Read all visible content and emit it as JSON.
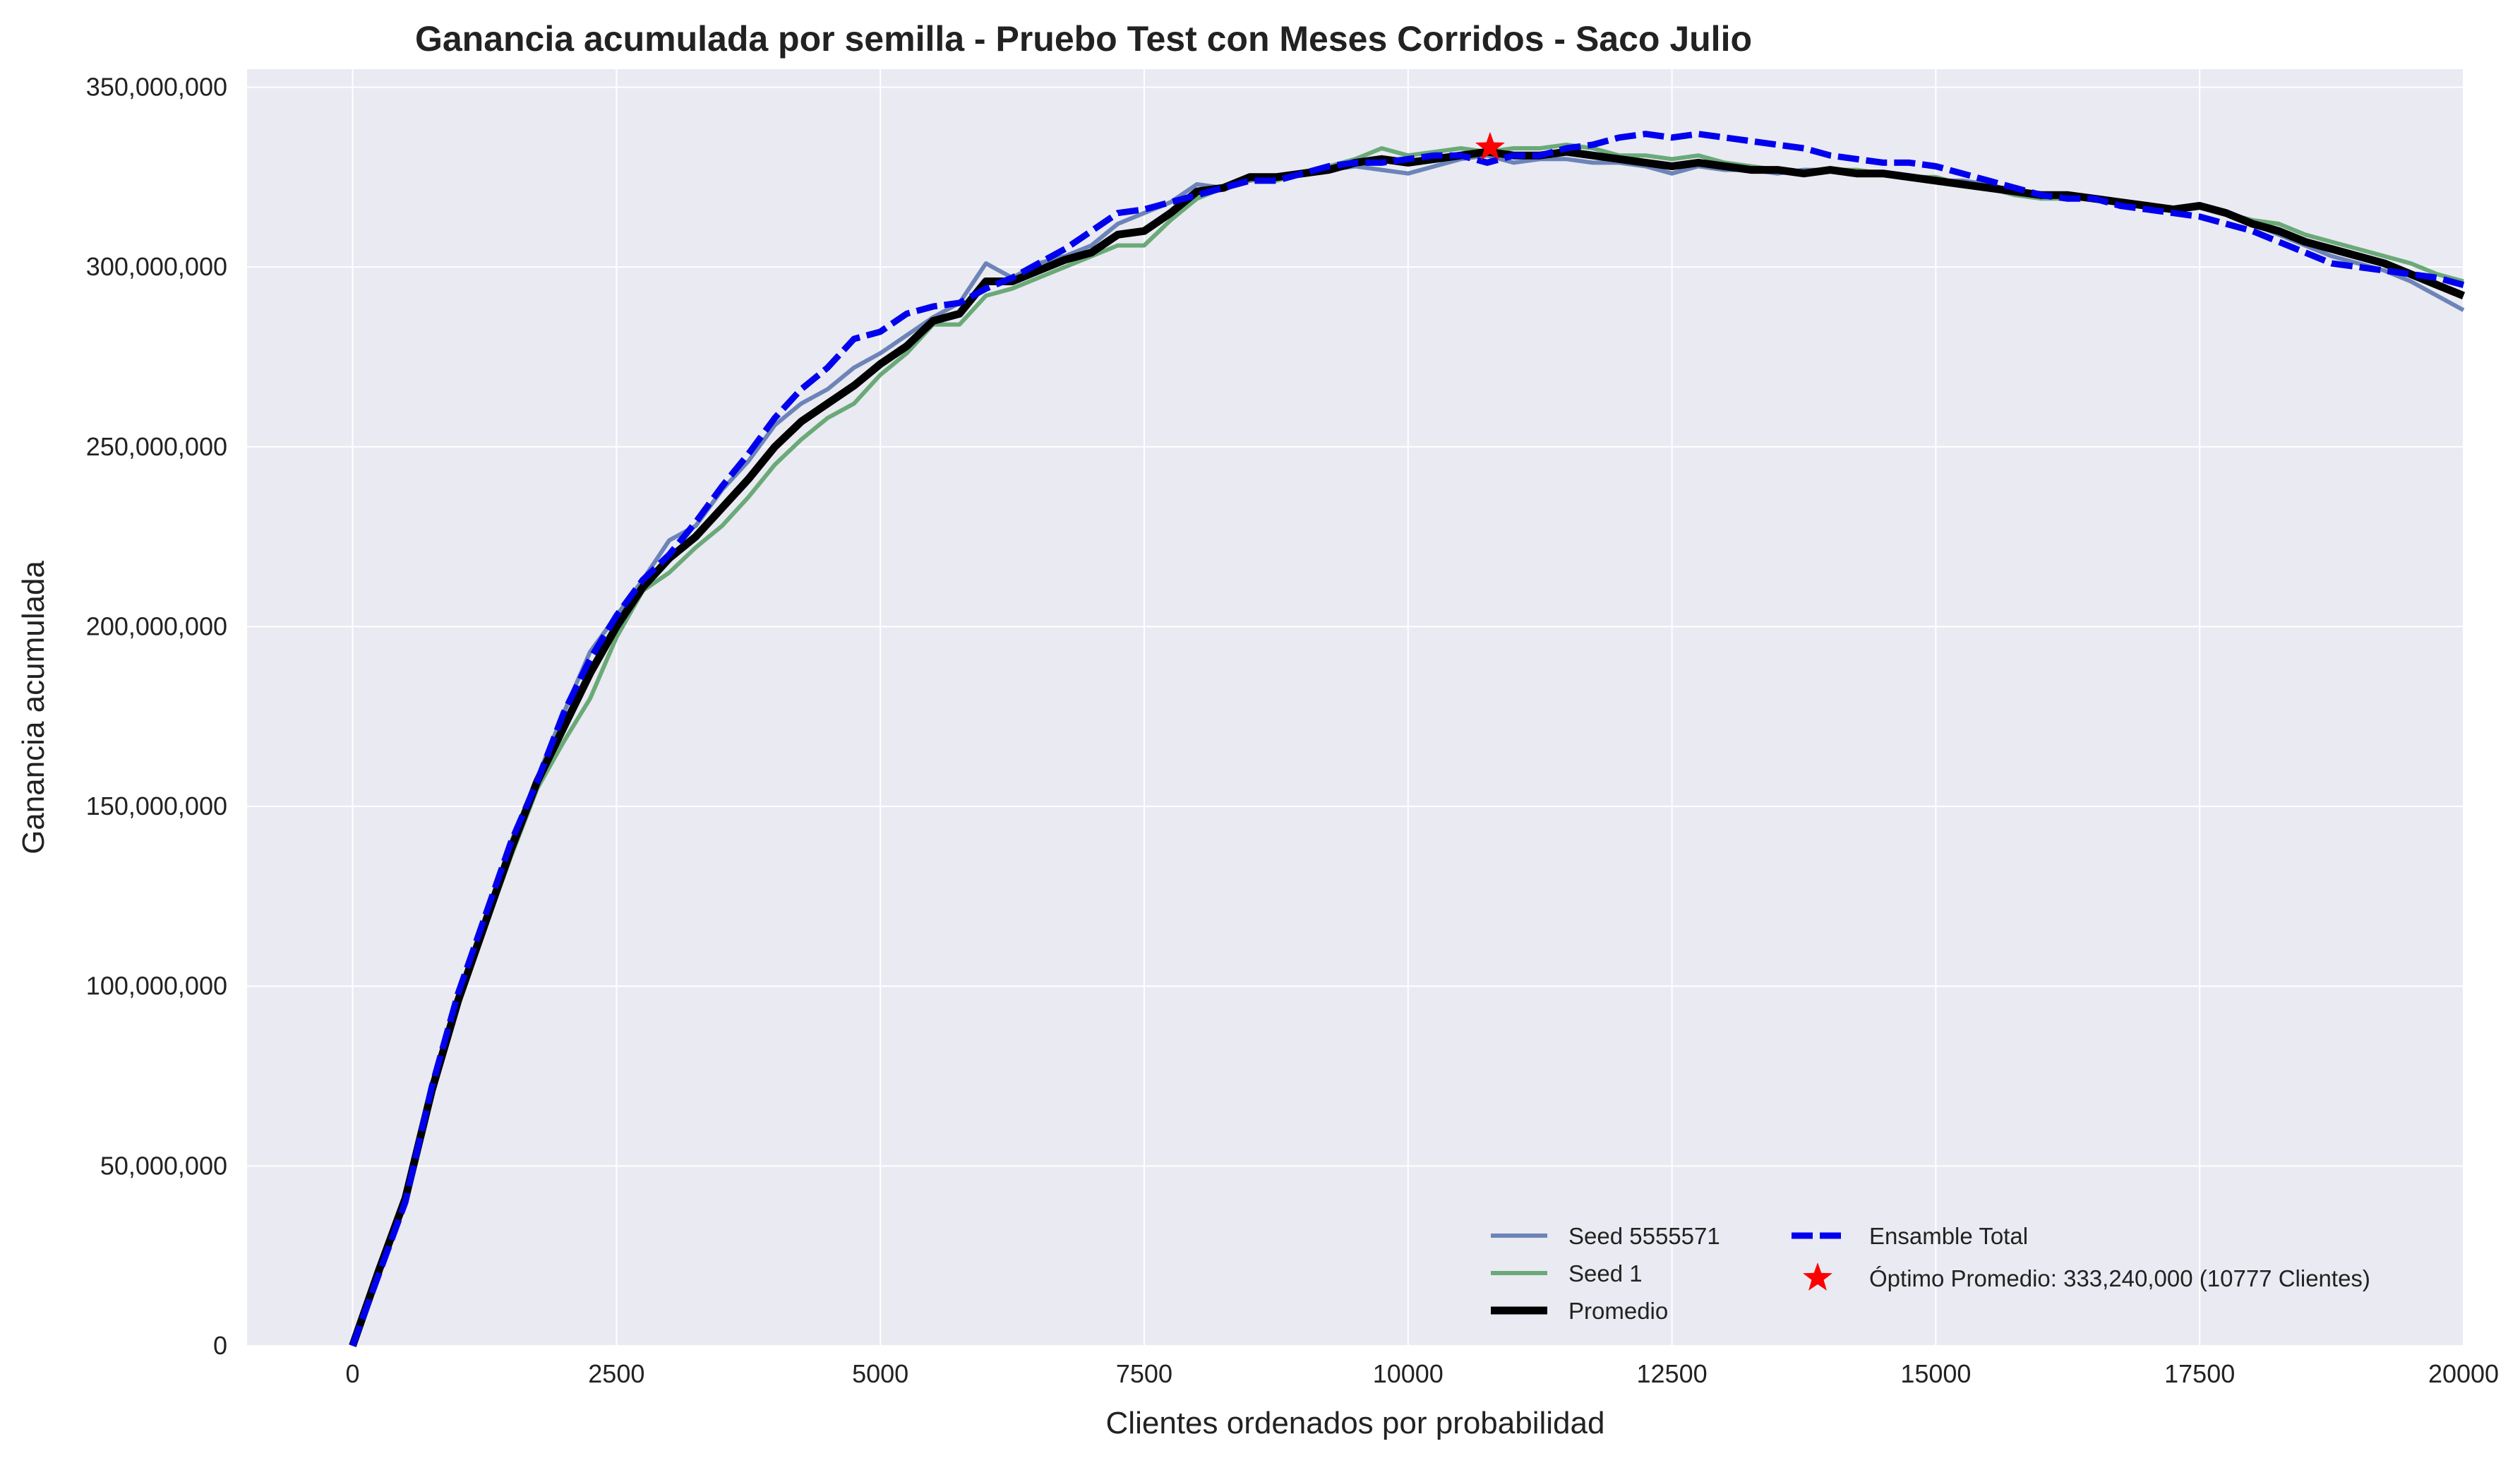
{
  "chart_data": {
    "type": "line",
    "title": "Ganancia acumulada por semilla - Pruebo Test con Meses Corridos - Saco Julio",
    "xlabel": "Clientes ordenados por probabilidad",
    "ylabel": "Ganancia acumulada",
    "xlim": [
      -1000,
      20000
    ],
    "ylim": [
      0,
      355000000
    ],
    "x_ticks": [
      0,
      2500,
      5000,
      7500,
      10000,
      12500,
      15000,
      17500,
      20000
    ],
    "x_tick_labels": [
      "0",
      "2500",
      "5000",
      "7500",
      "10000",
      "12500",
      "15000",
      "17500",
      "20000"
    ],
    "y_ticks": [
      0,
      50000000,
      100000000,
      150000000,
      200000000,
      250000000,
      300000000,
      350000000
    ],
    "y_tick_labels": [
      "0",
      "50,000,000",
      "100,000,000",
      "150,000,000",
      "200,000,000",
      "250,000,000",
      "300,000,000",
      "350,000,000"
    ],
    "grid": true,
    "background": "#eaeaf2",
    "legend_position": "bottom-right",
    "legend_columns": 2,
    "series": [
      {
        "name": "Seed 5555571",
        "color": "#6c84b8",
        "style": "solid",
        "x": [
          0,
          250,
          500,
          750,
          1000,
          1250,
          1500,
          1750,
          2000,
          2250,
          2500,
          2750,
          3000,
          3250,
          3500,
          3750,
          4000,
          4250,
          4500,
          4750,
          5000,
          5250,
          5500,
          5750,
          6000,
          6250,
          6500,
          6750,
          7000,
          7250,
          7500,
          7750,
          8000,
          8250,
          8500,
          8750,
          9000,
          9250,
          9500,
          9750,
          10000,
          10250,
          10500,
          10750,
          11000,
          11250,
          11500,
          11750,
          12000,
          12250,
          12500,
          12750,
          13000,
          13250,
          13500,
          13750,
          14000,
          14250,
          14500,
          14750,
          15000,
          15250,
          15500,
          15750,
          16000,
          16250,
          16500,
          16750,
          17000,
          17250,
          17500,
          17750,
          18000,
          18250,
          18500,
          18750,
          19000,
          19250,
          19500,
          19750,
          20000
        ],
        "values": [
          0,
          22000000,
          42000000,
          72000000,
          96000000,
          118000000,
          140000000,
          158000000,
          176000000,
          193000000,
          203000000,
          213000000,
          224000000,
          228000000,
          238000000,
          246000000,
          256000000,
          262000000,
          266000000,
          272000000,
          276000000,
          281000000,
          286000000,
          290000000,
          301000000,
          297000000,
          301000000,
          303000000,
          306000000,
          312000000,
          315000000,
          318000000,
          323000000,
          322000000,
          324000000,
          325000000,
          326000000,
          327000000,
          328000000,
          327000000,
          326000000,
          328000000,
          330000000,
          331000000,
          329000000,
          330000000,
          330000000,
          329000000,
          329000000,
          328000000,
          326000000,
          328000000,
          327000000,
          327000000,
          326000000,
          327000000,
          327000000,
          326000000,
          326000000,
          325000000,
          324000000,
          324000000,
          323000000,
          321000000,
          320000000,
          320000000,
          319000000,
          318000000,
          317000000,
          316000000,
          317000000,
          315000000,
          312000000,
          309000000,
          306000000,
          303000000,
          301000000,
          299000000,
          296000000,
          292000000,
          288000000
        ]
      },
      {
        "name": "Seed 1",
        "color": "#6aaa78",
        "style": "solid",
        "x": [
          0,
          250,
          500,
          750,
          1000,
          1250,
          1500,
          1750,
          2000,
          2250,
          2500,
          2750,
          3000,
          3250,
          3500,
          3750,
          4000,
          4250,
          4500,
          4750,
          5000,
          5250,
          5500,
          5750,
          6000,
          6250,
          6500,
          6750,
          7000,
          7250,
          7500,
          7750,
          8000,
          8250,
          8500,
          8750,
          9000,
          9250,
          9500,
          9750,
          10000,
          10250,
          10500,
          10750,
          11000,
          11250,
          11500,
          11750,
          12000,
          12250,
          12500,
          12750,
          13000,
          13250,
          13500,
          13750,
          14000,
          14250,
          14500,
          14750,
          15000,
          15250,
          15500,
          15750,
          16000,
          16250,
          16500,
          16750,
          17000,
          17250,
          17500,
          17750,
          18000,
          18250,
          18500,
          18750,
          19000,
          19250,
          19500,
          19750,
          20000
        ],
        "values": [
          0,
          20000000,
          40000000,
          70000000,
          95000000,
          116000000,
          136000000,
          155000000,
          168000000,
          180000000,
          197000000,
          210000000,
          215000000,
          222000000,
          228000000,
          236000000,
          245000000,
          252000000,
          258000000,
          262000000,
          270000000,
          276000000,
          284000000,
          284000000,
          292000000,
          294000000,
          297000000,
          300000000,
          303000000,
          306000000,
          306000000,
          313000000,
          319000000,
          322000000,
          325000000,
          324000000,
          326000000,
          328000000,
          330000000,
          333000000,
          331000000,
          332000000,
          333000000,
          332000000,
          333000000,
          333000000,
          334000000,
          333000000,
          331000000,
          331000000,
          330000000,
          331000000,
          329000000,
          328000000,
          327000000,
          326000000,
          327000000,
          327000000,
          326000000,
          325000000,
          325000000,
          323000000,
          322000000,
          320000000,
          319000000,
          319000000,
          319000000,
          318000000,
          317000000,
          316000000,
          317000000,
          315000000,
          313000000,
          312000000,
          309000000,
          307000000,
          305000000,
          303000000,
          301000000,
          298000000,
          296000000
        ]
      },
      {
        "name": "Promedio",
        "color": "#000000",
        "style": "solid-thick",
        "x": [
          0,
          250,
          500,
          750,
          1000,
          1250,
          1500,
          1750,
          2000,
          2250,
          2500,
          2750,
          3000,
          3250,
          3500,
          3750,
          4000,
          4250,
          4500,
          4750,
          5000,
          5250,
          5500,
          5750,
          6000,
          6250,
          6500,
          6750,
          7000,
          7250,
          7500,
          7750,
          8000,
          8250,
          8500,
          8750,
          9000,
          9250,
          9500,
          9750,
          10000,
          10250,
          10500,
          10750,
          11000,
          11250,
          11500,
          11750,
          12000,
          12250,
          12500,
          12750,
          13000,
          13250,
          13500,
          13750,
          14000,
          14250,
          14500,
          14750,
          15000,
          15250,
          15500,
          15750,
          16000,
          16250,
          16500,
          16750,
          17000,
          17250,
          17500,
          17750,
          18000,
          18250,
          18500,
          18750,
          19000,
          19250,
          19500,
          19750,
          20000
        ],
        "values": [
          0,
          21000000,
          41000000,
          71000000,
          96000000,
          117000000,
          138000000,
          157000000,
          172000000,
          187000000,
          200000000,
          211000000,
          219000000,
          225000000,
          233000000,
          241000000,
          250000000,
          257000000,
          262000000,
          267000000,
          273000000,
          278000000,
          285000000,
          287000000,
          296000000,
          296000000,
          299000000,
          302000000,
          304000000,
          309000000,
          310000000,
          315000000,
          321000000,
          322000000,
          325000000,
          325000000,
          326000000,
          327000000,
          329000000,
          330000000,
          329000000,
          330000000,
          331000000,
          332000000,
          331000000,
          331000000,
          332000000,
          331000000,
          330000000,
          329000000,
          328000000,
          329000000,
          328000000,
          327000000,
          327000000,
          326000000,
          327000000,
          326000000,
          326000000,
          325000000,
          324000000,
          323000000,
          322000000,
          321000000,
          320000000,
          320000000,
          319000000,
          318000000,
          317000000,
          316000000,
          317000000,
          315000000,
          312000000,
          310000000,
          307000000,
          305000000,
          303000000,
          301000000,
          298000000,
          295000000,
          292000000
        ]
      },
      {
        "name": "Ensamble Total",
        "color": "#0000ee",
        "style": "dashed",
        "x": [
          0,
          250,
          500,
          750,
          1000,
          1250,
          1500,
          1750,
          2000,
          2250,
          2500,
          2750,
          3000,
          3250,
          3500,
          3750,
          4000,
          4250,
          4500,
          4750,
          5000,
          5250,
          5500,
          5750,
          6000,
          6250,
          6500,
          6750,
          7000,
          7250,
          7500,
          7750,
          8000,
          8250,
          8500,
          8750,
          9000,
          9250,
          9500,
          9750,
          10000,
          10250,
          10500,
          10750,
          11000,
          11250,
          11500,
          11750,
          12000,
          12250,
          12500,
          12750,
          13000,
          13250,
          13500,
          13750,
          14000,
          14250,
          14500,
          14750,
          15000,
          15250,
          15500,
          15750,
          16000,
          16250,
          16500,
          16750,
          17000,
          17250,
          17500,
          17750,
          18000,
          18250,
          18500,
          18750,
          19000,
          19250,
          19500,
          19750,
          20000
        ],
        "values": [
          0,
          20000000,
          40000000,
          72000000,
          98000000,
          119000000,
          140000000,
          157000000,
          176000000,
          191000000,
          203000000,
          213000000,
          220000000,
          229000000,
          239000000,
          248000000,
          258000000,
          266000000,
          272000000,
          280000000,
          282000000,
          287000000,
          289000000,
          290000000,
          294000000,
          297000000,
          301000000,
          305000000,
          310000000,
          315000000,
          316000000,
          318000000,
          320000000,
          322000000,
          324000000,
          324000000,
          326000000,
          328000000,
          329000000,
          329000000,
          330000000,
          331000000,
          331000000,
          329000000,
          331000000,
          331000000,
          333000000,
          334000000,
          336000000,
          337000000,
          336000000,
          337000000,
          336000000,
          335000000,
          334000000,
          333000000,
          331000000,
          330000000,
          329000000,
          329000000,
          328000000,
          326000000,
          324000000,
          322000000,
          320000000,
          319000000,
          319000000,
          317000000,
          316000000,
          315000000,
          314000000,
          312000000,
          310000000,
          307000000,
          304000000,
          301000000,
          300000000,
          299000000,
          298000000,
          297000000,
          295000000
        ]
      }
    ],
    "annotations": [
      {
        "name": "Óptimo Promedio: 333,240,000 (10777 Clientes)",
        "marker": "star",
        "color": "#ff0000",
        "x": 10777,
        "y": 333240000
      }
    ]
  }
}
